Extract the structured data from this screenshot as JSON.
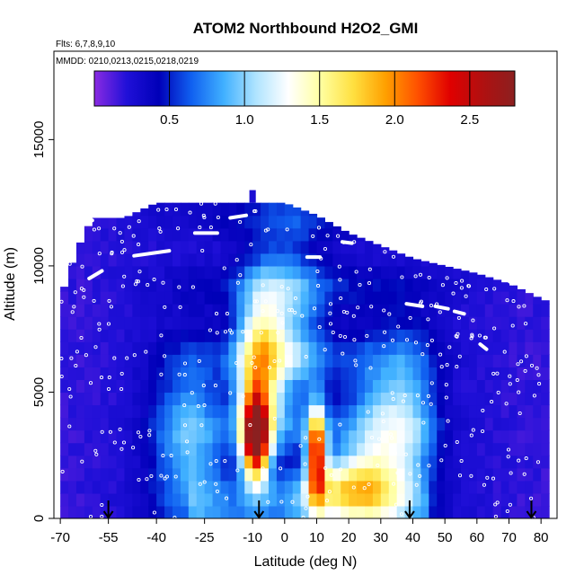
{
  "chart_data": {
    "type": "heatmap",
    "title": "ATOM2 Northbound H2O2_GMI",
    "subtitle_flights": "Flts: 6,7,8,9,10",
    "subtitle_dates": "MMDD: 0210,0213,0215,0218,0219",
    "xlabel": "Latitude (deg N)",
    "ylabel": "Altitude (m)",
    "xlim": [
      -72,
      85
    ],
    "ylim": [
      0,
      18500
    ],
    "x_ticks": [
      -70,
      -55,
      -40,
      -25,
      -10,
      0,
      10,
      20,
      30,
      40,
      50,
      60,
      70,
      80
    ],
    "x_tick_labels": [
      "-70",
      "-55",
      "-40",
      "-25",
      "-10",
      "0",
      "10",
      "20",
      "30",
      "40",
      "50",
      "60",
      "70",
      "80"
    ],
    "y_ticks": [
      0,
      5000,
      10000,
      15000
    ],
    "y_tick_labels": [
      "0",
      "5000",
      "10000",
      "15000"
    ],
    "colorbar": {
      "min": 0,
      "max": 2.8,
      "ticks": [
        0.5,
        1.0,
        1.5,
        2.0,
        2.5
      ],
      "tick_labels": [
        "0.5",
        "1.0",
        "1.5",
        "2.0",
        "2.5"
      ],
      "colors": [
        "#8a2be2",
        "#2010d8",
        "#0000b8",
        "#1060f0",
        "#40b0ff",
        "#b0e4ff",
        "#ffffff",
        "#ffffa0",
        "#ffe040",
        "#ffa000",
        "#ff5000",
        "#e00000",
        "#b01010",
        "#8b2020"
      ]
    },
    "cell_size": {
      "lat": 2.5,
      "alt": 500
    },
    "ceiling": [
      {
        "lat": -70,
        "alt": 8700
      },
      {
        "lat": -65,
        "alt": 10600
      },
      {
        "lat": -60,
        "alt": 11900
      },
      {
        "lat": -50,
        "alt": 11900
      },
      {
        "lat": -40,
        "alt": 12500
      },
      {
        "lat": 0,
        "alt": 12500
      },
      {
        "lat": 10,
        "alt": 12000
      },
      {
        "lat": 20,
        "alt": 11300
      },
      {
        "lat": 30,
        "alt": 10800
      },
      {
        "lat": 40,
        "alt": 10300
      },
      {
        "lat": 50,
        "alt": 10000
      },
      {
        "lat": 60,
        "alt": 9700
      },
      {
        "lat": 70,
        "alt": 9300
      },
      {
        "lat": 80,
        "alt": 8700
      },
      {
        "lat": 82,
        "alt": 8600
      }
    ],
    "hotspots": [
      {
        "lat": -9,
        "alt": 3200,
        "peak": 2.8,
        "lat_spread": 3.0,
        "alt_spread": 1200
      },
      {
        "lat": 10,
        "alt": 2600,
        "peak": 2.3,
        "lat_spread": 2.0,
        "alt_spread": 1300
      },
      {
        "lat": -8,
        "alt": 6000,
        "peak": 1.5,
        "lat_spread": 5.0,
        "alt_spread": 2000
      },
      {
        "lat": 20,
        "alt": 1200,
        "peak": 1.4,
        "lat_spread": 10.0,
        "alt_spread": 900
      },
      {
        "lat": 30,
        "alt": 3000,
        "peak": 1.1,
        "lat_spread": 8.0,
        "alt_spread": 2500
      },
      {
        "lat": -30,
        "alt": 3000,
        "peak": 1.0,
        "lat_spread": 8.0,
        "alt_spread": 2500
      },
      {
        "lat": 0,
        "alt": 7500,
        "peak": 1.0,
        "lat_spread": 8.0,
        "alt_spread": 2500
      },
      {
        "lat": 40,
        "alt": 4000,
        "peak": 0.8,
        "lat_spread": 6.0,
        "alt_spread": 2500
      }
    ],
    "flight_track_segments": [
      [
        {
          "lat": -61,
          "alt": 9500
        },
        {
          "lat": -57,
          "alt": 9800
        }
      ],
      [
        {
          "lat": -47,
          "alt": 10400
        },
        {
          "lat": -36,
          "alt": 10600
        }
      ],
      [
        {
          "lat": -28,
          "alt": 11300
        },
        {
          "lat": -21,
          "alt": 11300
        }
      ],
      [
        {
          "lat": -63,
          "alt": 11700
        },
        {
          "lat": -60,
          "alt": 11800
        }
      ],
      [
        {
          "lat": -17,
          "alt": 11900
        },
        {
          "lat": -12,
          "alt": 12000
        }
      ],
      [
        {
          "lat": 7,
          "alt": 10350
        },
        {
          "lat": 11,
          "alt": 10350
        }
      ],
      [
        {
          "lat": 18,
          "alt": 10950
        },
        {
          "lat": 21,
          "alt": 10900
        }
      ],
      [
        {
          "lat": 38,
          "alt": 8500
        },
        {
          "lat": 43,
          "alt": 8400
        }
      ],
      [
        {
          "lat": 47,
          "alt": 8400
        },
        {
          "lat": 51,
          "alt": 8300
        }
      ],
      [
        {
          "lat": 53,
          "alt": 8200
        },
        {
          "lat": 56,
          "alt": 8100
        }
      ],
      [
        {
          "lat": 61,
          "alt": 6900
        },
        {
          "lat": 63,
          "alt": 6700
        }
      ],
      [
        {
          "lat": 69,
          "alt": 9500
        },
        {
          "lat": 71,
          "alt": 9300
        }
      ]
    ],
    "sample_point_columns": [
      -70,
      -66,
      -62,
      -58,
      -54,
      -50,
      -46,
      -42,
      -38,
      -34,
      -30,
      -26,
      -22,
      -18,
      -14,
      -10,
      -6,
      -2,
      2,
      6,
      10,
      14,
      18,
      22,
      26,
      30,
      34,
      38,
      42,
      46,
      50,
      54,
      58,
      62,
      66,
      70,
      74,
      78
    ],
    "markers": [
      {
        "lat": -55,
        "label": "arrow"
      },
      {
        "lat": -8,
        "label": "arrow"
      },
      {
        "lat": 39,
        "label": "arrow"
      },
      {
        "lat": 77,
        "label": "arrow"
      }
    ]
  }
}
